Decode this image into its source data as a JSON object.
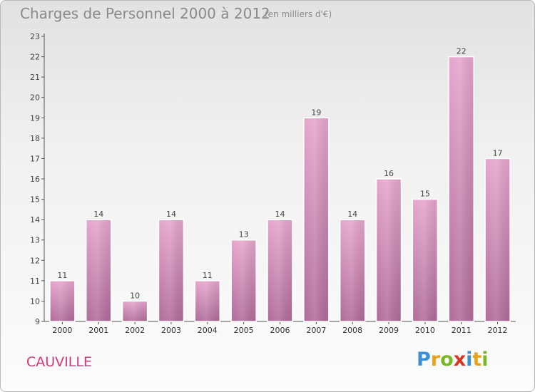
{
  "title": "Charges de Personnel 2000 à 2012",
  "subtitle": "(en milliers d'€)",
  "commune": "CAUVILLE",
  "logo": {
    "letters": [
      "P",
      "r",
      "o",
      "x",
      "i",
      "t",
      "i"
    ],
    "colors": [
      "#3b8fd6",
      "#e8a21c",
      "#7bb828",
      "#d8351f",
      "#3b8fd6",
      "#e8a21c",
      "#7bb828"
    ]
  },
  "chart_data": {
    "type": "bar",
    "categories": [
      "2000",
      "2001",
      "2002",
      "2003",
      "2004",
      "2005",
      "2006",
      "2007",
      "2008",
      "2009",
      "2010",
      "2011",
      "2012"
    ],
    "values": [
      11,
      14,
      10,
      14,
      11,
      13,
      14,
      19,
      14,
      16,
      15,
      22,
      17
    ],
    "data_labels": [
      "11",
      "14",
      "10",
      "14",
      "11",
      "13",
      "14",
      "19",
      "14",
      "16",
      "15",
      "22",
      "17"
    ],
    "yticks": [
      "9",
      "10",
      "11",
      "12",
      "13",
      "14",
      "15",
      "16",
      "17",
      "18",
      "19",
      "20",
      "21",
      "22",
      "23"
    ],
    "ylim": [
      9,
      23
    ],
    "bar_color_top": "#e6a6cc",
    "bar_color_bottom": "#b06c9a",
    "grid": false
  }
}
